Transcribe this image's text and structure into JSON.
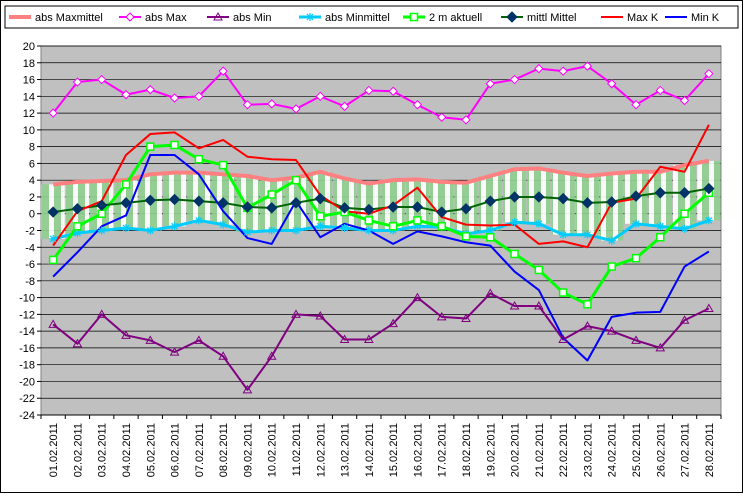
{
  "chart_data": {
    "type": "line",
    "title": "",
    "xlabel": "",
    "ylabel": "",
    "ylim": [
      -24,
      20
    ],
    "ytick_step": 2,
    "grid": true,
    "legend_position": "top",
    "categories": [
      "01.02.2011",
      "02.02.2011",
      "03.02.2011",
      "04.02.2011",
      "05.02.2011",
      "06.02.2011",
      "07.02.2011",
      "08.02.2011",
      "09.02.2011",
      "10.02.2011",
      "11.02.2011",
      "12.02.2011",
      "13.02.2011",
      "14.02.2011",
      "15.02.2011",
      "16.02.2011",
      "17.02.2011",
      "18.02.2011",
      "19.02.2011",
      "20.02.2011",
      "21.02.2011",
      "22.02.2011",
      "23.02.2011",
      "24.02.2011",
      "25.02.2011",
      "26.02.2011",
      "27.02.2011",
      "28.02.2011"
    ],
    "band": {
      "upper_series": "abs Maxmittel",
      "lower_series": "abs Minmittel",
      "fill_color": "#8fd08f",
      "hatch_color": "#ffffff"
    },
    "series": [
      {
        "name": "abs Maxmittel",
        "color": "#ff8080",
        "marker": "none",
        "width": 4,
        "values": [
          3.5,
          3.8,
          3.9,
          4.0,
          4.7,
          4.9,
          4.9,
          4.7,
          4.5,
          4.0,
          4.3,
          5.0,
          4.2,
          3.6,
          4.0,
          4.1,
          3.8,
          3.7,
          4.5,
          5.3,
          5.4,
          4.9,
          4.5,
          4.8,
          5.0,
          5.0,
          5.8,
          6.3
        ]
      },
      {
        "name": "abs Max",
        "color": "#ff00ff",
        "marker": "diamond-open",
        "values": [
          12.0,
          15.7,
          16.0,
          14.2,
          14.8,
          13.8,
          14.0,
          17.0,
          13.0,
          13.1,
          12.5,
          14.0,
          12.8,
          14.7,
          14.6,
          13.0,
          11.5,
          11.2,
          15.5,
          16.0,
          17.3,
          17.0,
          17.6,
          15.5,
          13.0,
          14.7,
          13.5,
          16.7
        ]
      },
      {
        "name": "abs Min",
        "color": "#800080",
        "marker": "triangle-open",
        "values": [
          -13.2,
          -15.5,
          -12.0,
          -14.5,
          -15.1,
          -16.5,
          -15.1,
          -17.0,
          -21.0,
          -17.0,
          -12.0,
          -12.2,
          -15.0,
          -15.0,
          -13.1,
          -10.0,
          -12.3,
          -12.5,
          -9.5,
          -11.0,
          -11.0,
          -15.0,
          -13.4,
          -14.0,
          -15.1,
          -16.0,
          -12.7,
          -11.3
        ]
      },
      {
        "name": "abs Minmittel",
        "color": "#00ccff",
        "marker": "asterisk",
        "width": 3,
        "values": [
          -3.0,
          -2.3,
          -2.0,
          -1.7,
          -2.0,
          -1.5,
          -0.8,
          -1.3,
          -2.2,
          -2.0,
          -2.0,
          -1.5,
          -1.7,
          -2.0,
          -2.0,
          -1.5,
          -1.6,
          -2.4,
          -2.0,
          -1.0,
          -1.2,
          -2.5,
          -2.5,
          -3.2,
          -1.2,
          -1.5,
          -1.8,
          -0.8
        ]
      },
      {
        "name": "2 m aktuell",
        "color": "#00ff00",
        "marker": "square-open",
        "width": 3,
        "values": [
          -5.5,
          -1.5,
          0.0,
          3.5,
          8.0,
          8.2,
          6.5,
          5.8,
          0.7,
          2.3,
          4.0,
          -0.3,
          0.2,
          -0.8,
          -1.5,
          -0.8,
          -1.5,
          -2.7,
          -2.8,
          -4.8,
          -6.7,
          -9.4,
          -10.8,
          -6.3,
          -5.3,
          -2.8,
          0.0,
          2.5
        ]
      },
      {
        "name": "mittl Mittel",
        "color": "#006400",
        "marker": "diamond-filled",
        "marker_color": "#003366",
        "values": [
          0.2,
          0.6,
          1.0,
          1.3,
          1.6,
          1.7,
          1.5,
          1.3,
          0.8,
          0.7,
          1.3,
          1.8,
          0.7,
          0.5,
          0.8,
          0.8,
          0.2,
          0.6,
          1.5,
          2.0,
          2.0,
          1.8,
          1.3,
          1.4,
          2.1,
          2.5,
          2.5,
          3.0
        ]
      },
      {
        "name": "Max K",
        "color": "#ff0000",
        "marker": "none",
        "values": [
          -3.8,
          0.3,
          1.5,
          7.0,
          9.5,
          9.7,
          7.8,
          8.8,
          6.8,
          6.5,
          6.4,
          2.2,
          0.3,
          0.0,
          1.0,
          3.1,
          -0.4,
          -1.3,
          -1.4,
          -1.3,
          -3.6,
          -3.3,
          -4.0,
          1.3,
          1.8,
          5.6,
          5.0,
          10.6
        ]
      },
      {
        "name": "Min K",
        "color": "#0000ff",
        "marker": "none",
        "values": [
          -7.5,
          -4.6,
          -1.5,
          -0.2,
          7.0,
          7.0,
          4.7,
          0.3,
          -2.9,
          -3.6,
          1.5,
          -2.8,
          -1.2,
          -2.0,
          -3.6,
          -2.1,
          -2.7,
          -3.4,
          -3.8,
          -6.9,
          -9.1,
          -14.8,
          -17.5,
          -12.3,
          -11.8,
          -11.7,
          -6.3,
          -4.5
        ]
      }
    ]
  }
}
